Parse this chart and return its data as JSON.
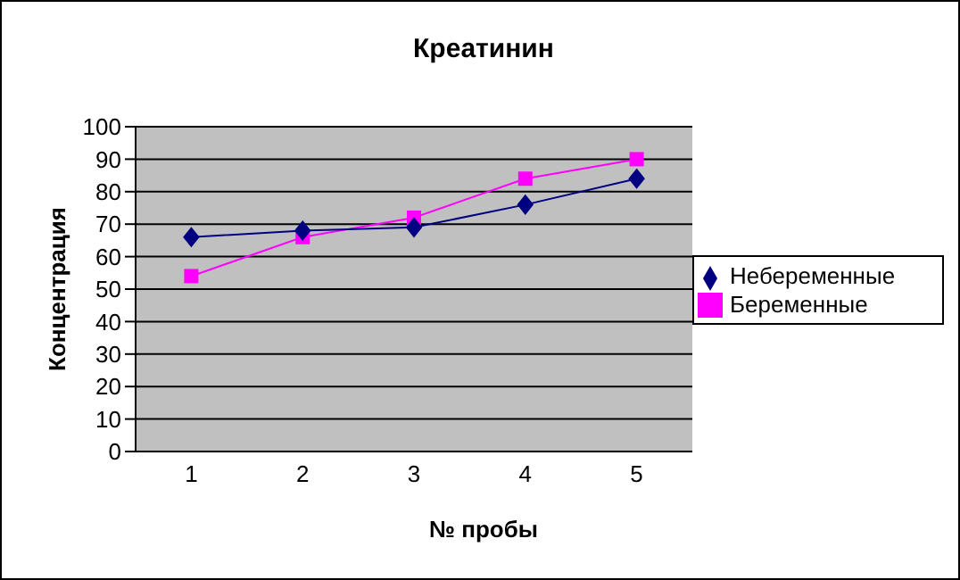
{
  "chart_data": {
    "type": "line",
    "title": "Креатинин",
    "xlabel": "№ пробы",
    "ylabel": "Концентрация",
    "categories": [
      "1",
      "2",
      "3",
      "4",
      "5"
    ],
    "series": [
      {
        "name": "Небеременные",
        "color": "#000080",
        "marker": "diamond",
        "values": [
          66,
          68,
          69,
          76,
          84
        ]
      },
      {
        "name": "Беременные",
        "color": "#ff00ff",
        "marker": "square",
        "values": [
          54,
          66,
          72,
          84,
          90
        ]
      }
    ],
    "ylim": [
      0,
      100
    ],
    "yticks": [
      0,
      10,
      20,
      30,
      40,
      50,
      60,
      70,
      80,
      90,
      100
    ],
    "grid": "y",
    "legend": "right"
  }
}
